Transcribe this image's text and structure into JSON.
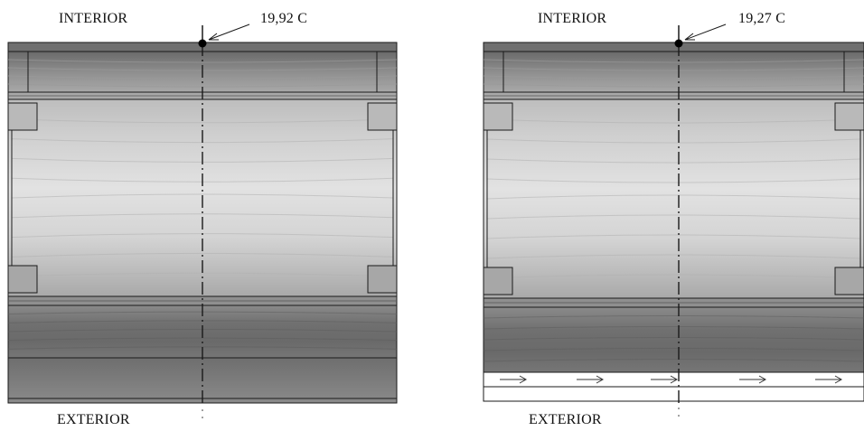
{
  "panels": [
    {
      "top_label": "INTERIOR",
      "bottom_label": "EXTERIOR",
      "temperature_label": "19,92  C"
    },
    {
      "top_label": "INTERIOR",
      "bottom_label": "EXTERIOR",
      "temperature_label": "19,27  C"
    }
  ],
  "colors": {
    "line": "#1a1a1a",
    "dark_band": "#5a5a5a",
    "light_core": "#dcdcdc",
    "background": "#ffffff"
  }
}
